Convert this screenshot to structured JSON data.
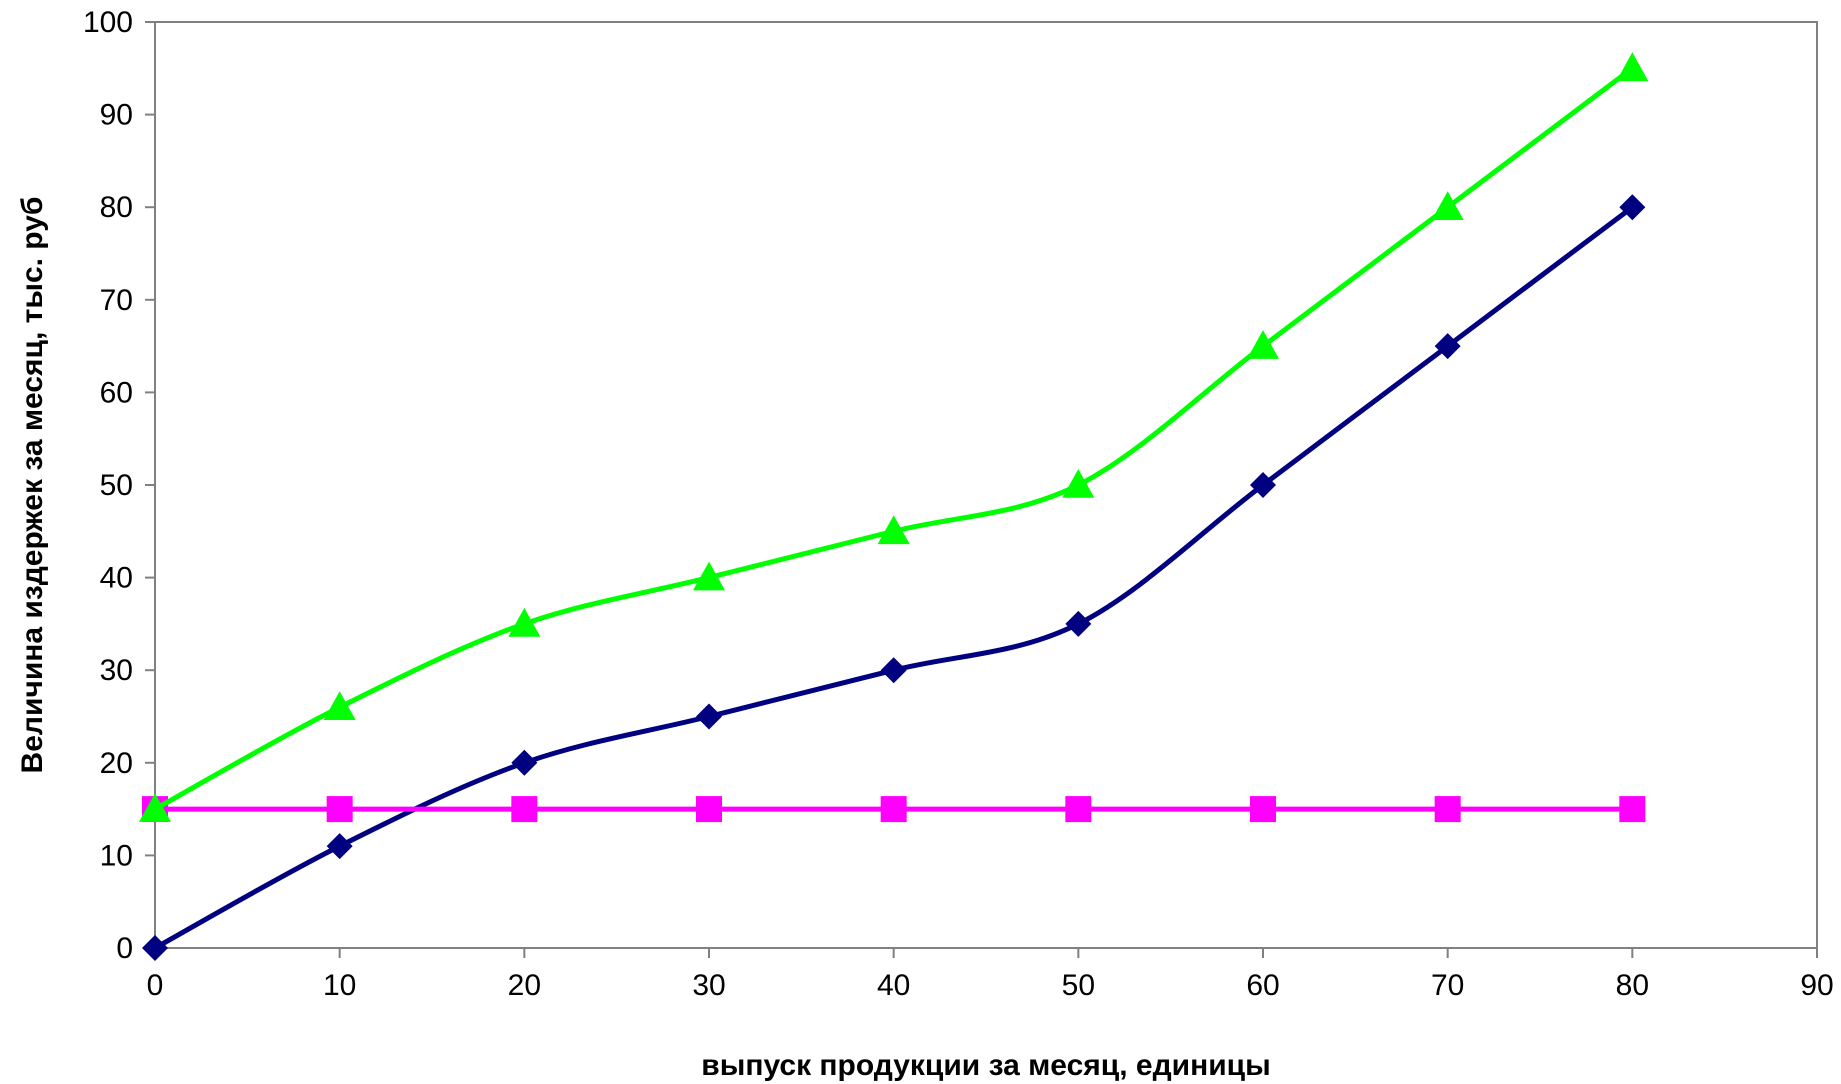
{
  "chart_data": {
    "type": "line",
    "title": "",
    "xlabel": "выпуск продукции за месяц, единицы",
    "ylabel": "Величина издержек за месяц, тыс. руб",
    "xlim": [
      0,
      90
    ],
    "ylim": [
      0,
      100
    ],
    "x_ticks": [
      "0",
      "10",
      "20",
      "30",
      "40",
      "50",
      "60",
      "70",
      "80",
      "90"
    ],
    "y_ticks": [
      "0",
      "10",
      "20",
      "30",
      "40",
      "50",
      "60",
      "70",
      "80",
      "90",
      "100"
    ],
    "grid": false,
    "legend": "none",
    "x": [
      0,
      10,
      20,
      30,
      40,
      50,
      60,
      70,
      80
    ],
    "series": [
      {
        "values": [
          0,
          11,
          20,
          25,
          30,
          35,
          50,
          65,
          80
        ],
        "color": "#000080",
        "marker": "diamond"
      },
      {
        "values": [
          15,
          15,
          15,
          15,
          15,
          15,
          15,
          15,
          15
        ],
        "color": "#ff00ff",
        "marker": "square"
      },
      {
        "values": [
          15,
          26,
          35,
          40,
          45,
          50,
          65,
          80,
          95
        ],
        "color": "#00ff00",
        "marker": "triangle"
      }
    ]
  }
}
